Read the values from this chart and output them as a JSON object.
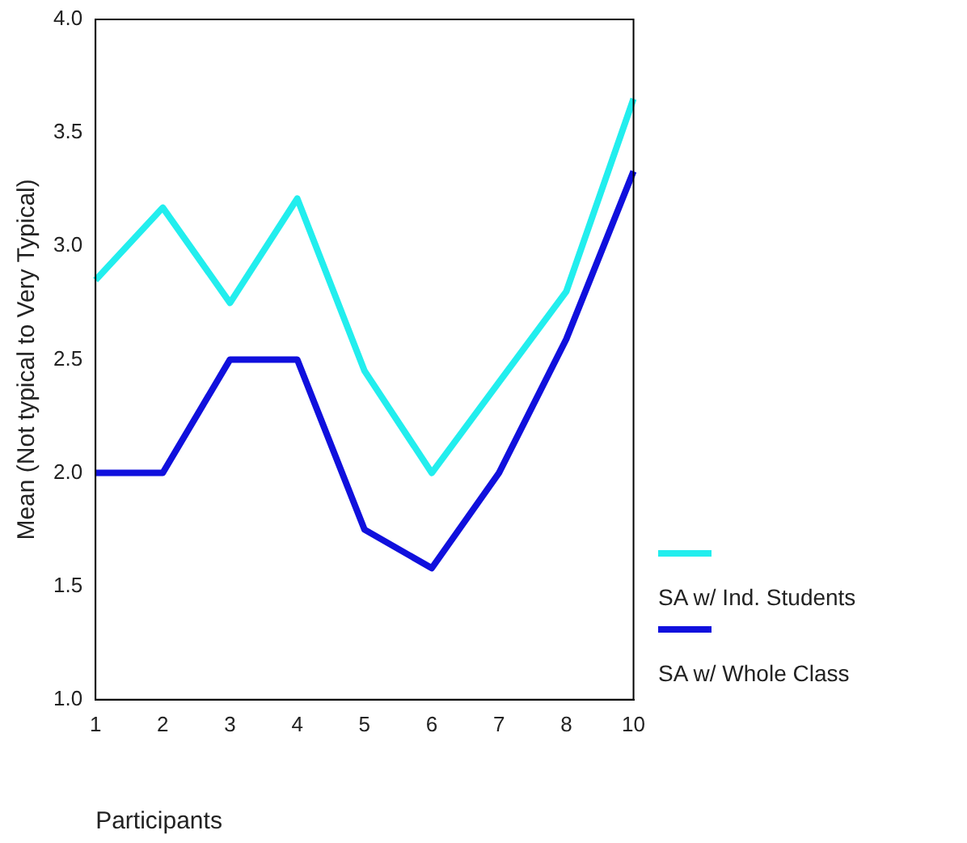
{
  "chart_data": {
    "type": "line",
    "xlabel": "Participants",
    "ylabel": "Mean (Not typical to Very Typical)",
    "categories": [
      "1",
      "2",
      "3",
      "4",
      "5",
      "6",
      "7",
      "8",
      "10"
    ],
    "series": [
      {
        "name": "SA w/ Ind. Students",
        "color": "#22eeee",
        "values": [
          2.85,
          3.17,
          2.75,
          3.21,
          2.45,
          2.0,
          2.4,
          2.8,
          3.65
        ]
      },
      {
        "name": "SA w/ Whole Class",
        "color": "#1010dd",
        "values": [
          2.0,
          2.0,
          2.5,
          2.5,
          1.75,
          1.58,
          2.0,
          2.59,
          3.33
        ]
      }
    ],
    "ylim": [
      1.0,
      4.0
    ],
    "yticks": [
      {
        "value": 1,
        "label": "1.0"
      },
      {
        "value": 1.5,
        "label": "1.5"
      },
      {
        "value": 2,
        "label": "2.0"
      },
      {
        "value": 2.5,
        "label": "2.5"
      },
      {
        "value": 3,
        "label": "3.0"
      },
      {
        "value": 3.5,
        "label": "3.5"
      },
      {
        "value": 4,
        "label": "4.0"
      }
    ],
    "grid": false,
    "legend": "right",
    "marker": "none",
    "line_style": "solid"
  }
}
